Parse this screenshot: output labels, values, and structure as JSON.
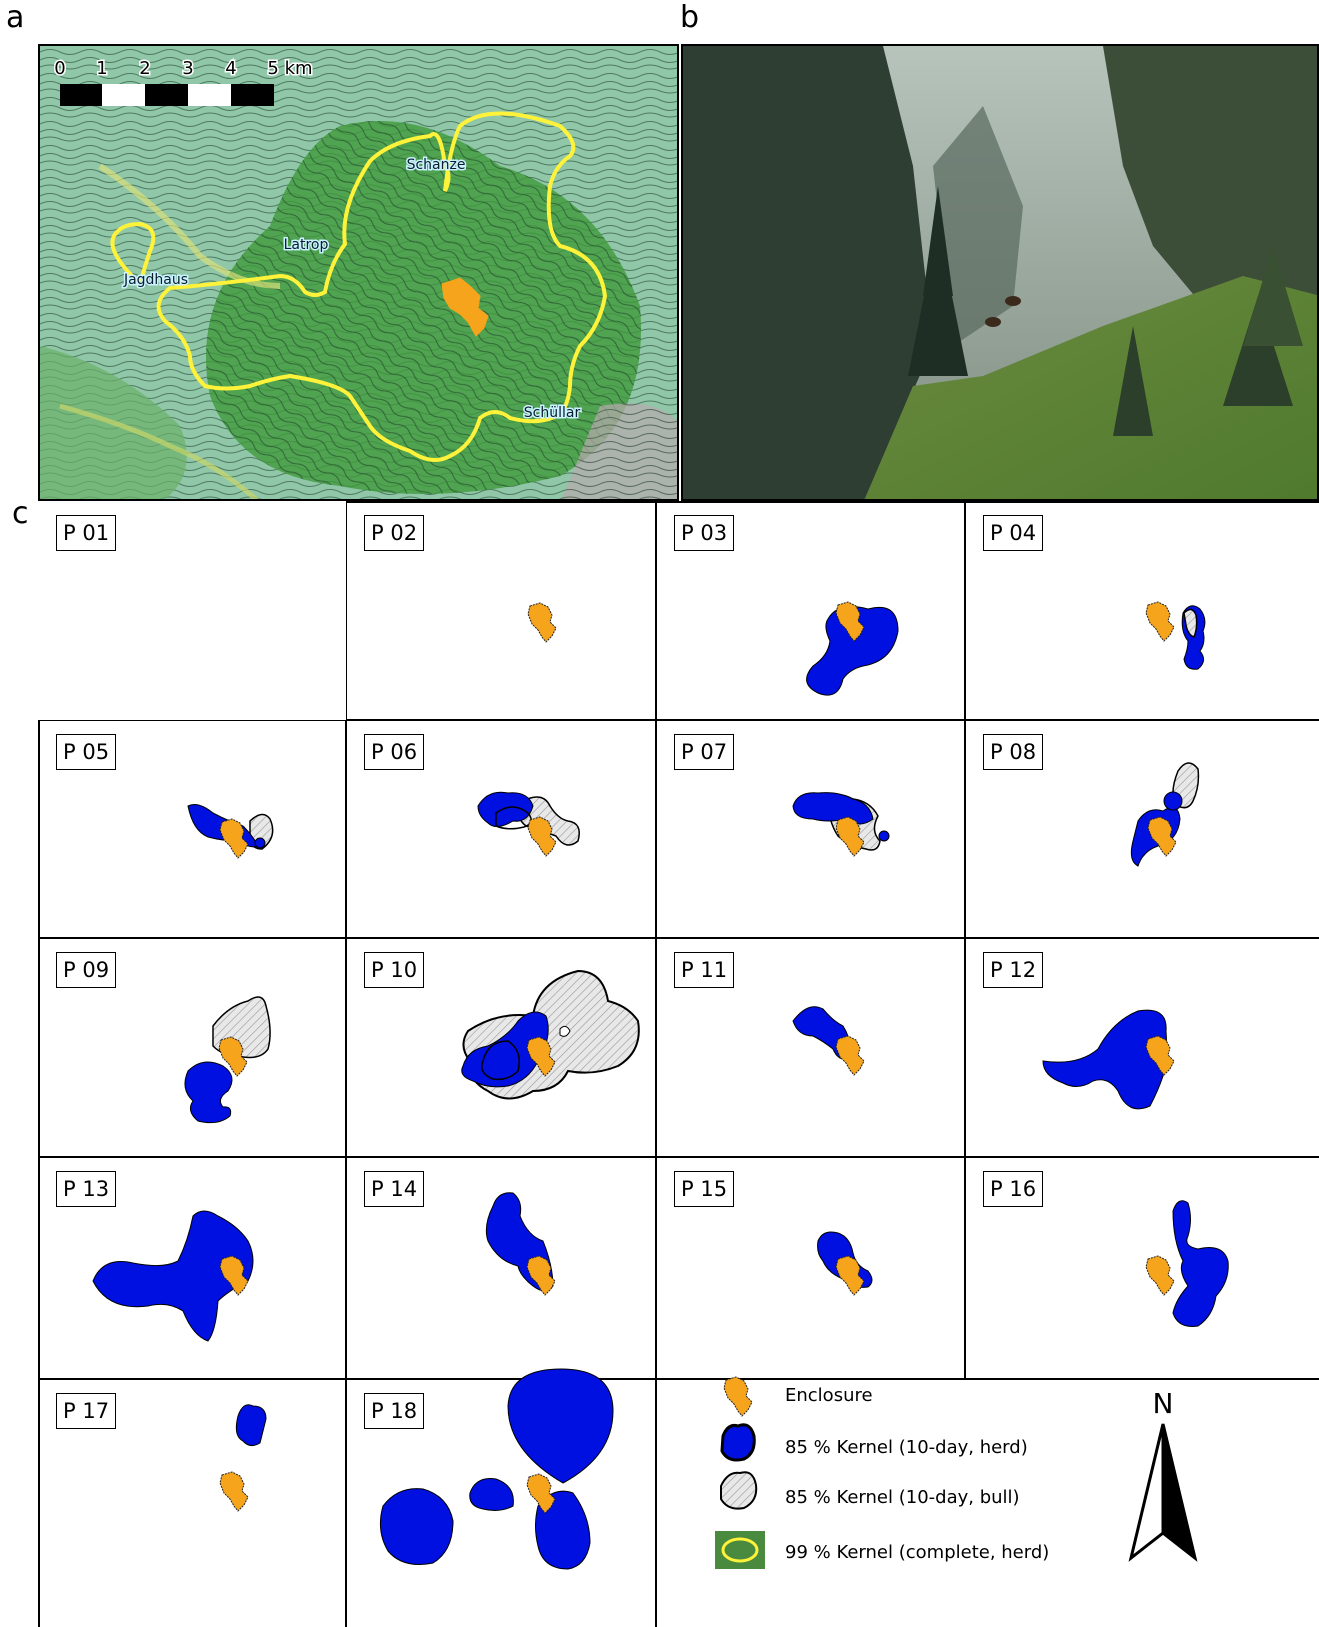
{
  "panel_letters": {
    "a": "a",
    "b": "b",
    "c": "c"
  },
  "map": {
    "scale_labels": [
      "0",
      "1",
      "2",
      "3",
      "4",
      "5 km"
    ],
    "places": {
      "schanze": "Schanze",
      "latrop": "Latrop",
      "jagdhaus": "Jagdhaus",
      "schuellar": "Schüllar"
    }
  },
  "colors": {
    "enclosure": "#f5a41b",
    "herd_kernel": "#0010e0",
    "bull_kernel": "#e8e8e8",
    "complete_kernel": "#ffff2a",
    "map_base": "#5fa86e"
  },
  "panels": [
    {
      "label": "P 01"
    },
    {
      "label": "P 02"
    },
    {
      "label": "P 03"
    },
    {
      "label": "P 04"
    },
    {
      "label": "P 05"
    },
    {
      "label": "P 06"
    },
    {
      "label": "P 07"
    },
    {
      "label": "P 08"
    },
    {
      "label": "P 09"
    },
    {
      "label": "P 10"
    },
    {
      "label": "P 11"
    },
    {
      "label": "P 12"
    },
    {
      "label": "P 13"
    },
    {
      "label": "P 14"
    },
    {
      "label": "P 15"
    },
    {
      "label": "P 16"
    },
    {
      "label": "P 17"
    },
    {
      "label": "P 18"
    }
  ],
  "legend": {
    "enclosure": "Enclosure",
    "herd": "85 % Kernel (10-day, herd)",
    "bull": "85 % Kernel (10-day, bull)",
    "complete": "99 % Kernel (complete, herd)"
  },
  "north_label": "N"
}
